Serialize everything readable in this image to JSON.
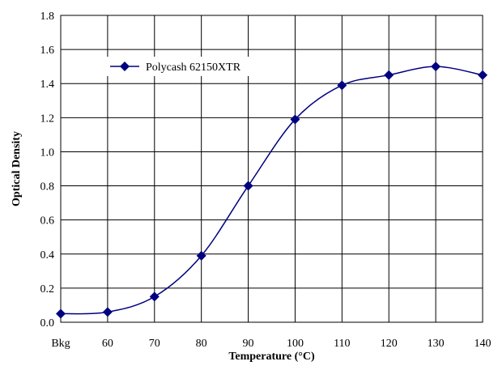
{
  "chart_data": {
    "type": "line",
    "title": "",
    "xlabel": "Temperature (°C)",
    "ylabel": "Optical Density",
    "categories": [
      "Bkg",
      "60",
      "70",
      "80",
      "90",
      "100",
      "110",
      "120",
      "130",
      "140"
    ],
    "series": [
      {
        "name": "Polycash 62150XTR",
        "values": [
          0.05,
          0.06,
          0.15,
          0.39,
          0.8,
          1.19,
          1.39,
          1.45,
          1.5,
          1.45
        ]
      }
    ],
    "ylim": [
      0,
      1.8
    ],
    "yticks": [
      "0.0",
      "0.2",
      "0.4",
      "0.6",
      "0.8",
      "1.0",
      "1.2",
      "1.4",
      "1.6",
      "1.8"
    ],
    "grid": true,
    "smooth": true,
    "marker": "diamond",
    "legend_position": "top-left",
    "colors": {
      "series": "#000080",
      "grid": "#000000",
      "axis": "#000000"
    }
  }
}
